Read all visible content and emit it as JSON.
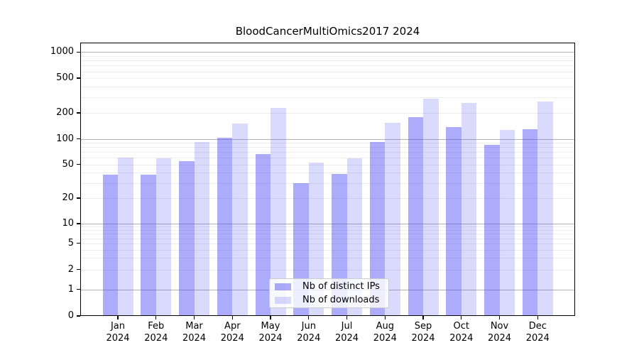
{
  "chart_data": {
    "type": "bar",
    "title": "BloodCancerMultiOmics2017 2024",
    "categories": [
      "Jan 2024",
      "Feb 2024",
      "Mar 2024",
      "Apr 2024",
      "May 2024",
      "Jun 2024",
      "Jul 2024",
      "Aug 2024",
      "Sep 2024",
      "Oct 2024",
      "Nov 2024",
      "Dec 2024"
    ],
    "series": [
      {
        "name": "Nb of distinct IPs",
        "color": "rgba(70,70,245,0.45)",
        "values": [
          38,
          38,
          55,
          103,
          66,
          30,
          39,
          92,
          178,
          138,
          85,
          129
        ]
      },
      {
        "name": "Nb of downloads",
        "color": "rgba(70,70,245,0.2)",
        "values": [
          60,
          59,
          92,
          150,
          228,
          53,
          59,
          154,
          290,
          260,
          126,
          270
        ]
      }
    ],
    "xlabel": "",
    "ylabel": "",
    "yticks": [
      0,
      1,
      2,
      5,
      10,
      20,
      50,
      100,
      200,
      500,
      1000
    ],
    "yscale": "log-like with 0 baseline",
    "ylim": [
      0,
      1280
    ],
    "grid": "horizontal, light minors at 2-9/20-90/200-900, gray majors at 1/10/100/1000",
    "legend_position": "lower center"
  }
}
